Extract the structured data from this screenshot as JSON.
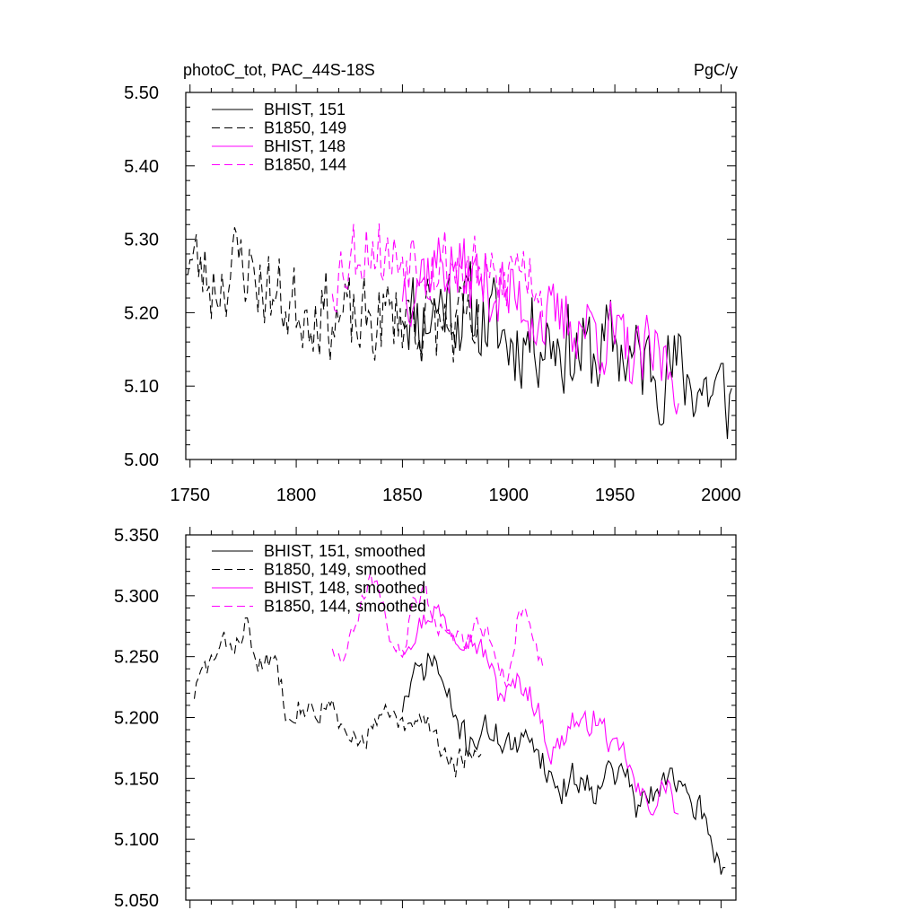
{
  "title_left": "photoC_tot, PAC_44S-18S",
  "title_right": "PgC/y",
  "chart_data": [
    {
      "type": "line",
      "panel": "top",
      "xlim": [
        1748,
        2007
      ],
      "ylim": [
        5.0,
        5.5
      ],
      "xticks": [
        1750,
        1800,
        1850,
        1900,
        1950,
        2000
      ],
      "xtick_labels": [
        "1750",
        "1800",
        "1850",
        "1900",
        "1950",
        "2000"
      ],
      "yticks": [
        5.0,
        5.1,
        5.2,
        5.3,
        5.4,
        5.5
      ],
      "ytick_labels": [
        "5.00",
        "5.10",
        "5.20",
        "5.30",
        "5.40",
        "5.50"
      ],
      "legend_position": "top-left",
      "series": [
        {
          "name": "BHIST, 151",
          "color": "#000000",
          "dash": "solid",
          "x_start": 1850,
          "x_end": 2005,
          "knots": [
            [
              1850,
              5.22
            ],
            [
              1860,
              5.19
            ],
            [
              1870,
              5.22
            ],
            [
              1880,
              5.2
            ],
            [
              1890,
              5.19
            ],
            [
              1900,
              5.16
            ],
            [
              1910,
              5.17
            ],
            [
              1920,
              5.17
            ],
            [
              1930,
              5.15
            ],
            [
              1940,
              5.14
            ],
            [
              1950,
              5.16
            ],
            [
              1960,
              5.13
            ],
            [
              1970,
              5.13
            ],
            [
              1980,
              5.12
            ],
            [
              1990,
              5.1
            ],
            [
              2005,
              5.08
            ]
          ],
          "amp": 0.06,
          "seed": 11
        },
        {
          "name": "B1850, 149",
          "color": "#000000",
          "dash": "dashed",
          "x_start": 1748,
          "x_end": 1887,
          "knots": [
            [
              1748,
              5.28
            ],
            [
              1760,
              5.24
            ],
            [
              1775,
              5.27
            ],
            [
              1790,
              5.22
            ],
            [
              1800,
              5.21
            ],
            [
              1810,
              5.21
            ],
            [
              1820,
              5.19
            ],
            [
              1830,
              5.18
            ],
            [
              1840,
              5.19
            ],
            [
              1850,
              5.2
            ],
            [
              1860,
              5.19
            ],
            [
              1870,
              5.18
            ],
            [
              1880,
              5.17
            ],
            [
              1887,
              5.17
            ]
          ],
          "amp": 0.055,
          "seed": 23
        },
        {
          "name": "BHIST, 148",
          "color": "#ff00ff",
          "dash": "solid",
          "x_start": 1850,
          "x_end": 1980,
          "knots": [
            [
              1850,
              5.24
            ],
            [
              1860,
              5.26
            ],
            [
              1870,
              5.27
            ],
            [
              1880,
              5.25
            ],
            [
              1890,
              5.24
            ],
            [
              1900,
              5.22
            ],
            [
              1910,
              5.21
            ],
            [
              1920,
              5.18
            ],
            [
              1930,
              5.19
            ],
            [
              1940,
              5.18
            ],
            [
              1950,
              5.16
            ],
            [
              1960,
              5.13
            ],
            [
              1970,
              5.14
            ],
            [
              1980,
              5.12
            ]
          ],
          "amp": 0.05,
          "seed": 37
        },
        {
          "name": "B1850, 144",
          "color": "#ff00ff",
          "dash": "dashed",
          "x_start": 1817,
          "x_end": 1916,
          "knots": [
            [
              1817,
              5.25
            ],
            [
              1825,
              5.28
            ],
            [
              1835,
              5.3
            ],
            [
              1845,
              5.27
            ],
            [
              1855,
              5.29
            ],
            [
              1865,
              5.27
            ],
            [
              1875,
              5.27
            ],
            [
              1885,
              5.25
            ],
            [
              1895,
              5.23
            ],
            [
              1905,
              5.27
            ],
            [
              1916,
              5.24
            ]
          ],
          "amp": 0.05,
          "seed": 53
        }
      ]
    },
    {
      "type": "line",
      "panel": "bottom",
      "xlim": [
        1748,
        2007
      ],
      "ylim": [
        5.05,
        5.35
      ],
      "xticks": [
        1750,
        1800,
        1850,
        1900,
        1950,
        2000
      ],
      "yticks": [
        5.05,
        5.1,
        5.15,
        5.2,
        5.25,
        5.3,
        5.35
      ],
      "ytick_labels": [
        "5.050",
        "5.100",
        "5.150",
        "5.200",
        "5.250",
        "5.300",
        "5.350"
      ],
      "legend_position": "top-left",
      "series": [
        {
          "name": "BHIST, 151, smoothed",
          "color": "#000000",
          "dash": "solid",
          "x_start": 1850,
          "x_end": 2002,
          "knots": [
            [
              1850,
              5.21
            ],
            [
              1855,
              5.23
            ],
            [
              1860,
              5.24
            ],
            [
              1865,
              5.25
            ],
            [
              1870,
              5.22
            ],
            [
              1875,
              5.2
            ],
            [
              1880,
              5.18
            ],
            [
              1890,
              5.19
            ],
            [
              1900,
              5.18
            ],
            [
              1905,
              5.17
            ],
            [
              1910,
              5.19
            ],
            [
              1915,
              5.17
            ],
            [
              1920,
              5.15
            ],
            [
              1925,
              5.14
            ],
            [
              1930,
              5.15
            ],
            [
              1935,
              5.15
            ],
            [
              1940,
              5.14
            ],
            [
              1945,
              5.16
            ],
            [
              1950,
              5.15
            ],
            [
              1955,
              5.16
            ],
            [
              1960,
              5.12
            ],
            [
              1965,
              5.14
            ],
            [
              1970,
              5.13
            ],
            [
              1975,
              5.16
            ],
            [
              1980,
              5.15
            ],
            [
              1985,
              5.12
            ],
            [
              1990,
              5.13
            ],
            [
              1995,
              5.1
            ],
            [
              2000,
              5.08
            ],
            [
              2002,
              5.08
            ]
          ],
          "amp": 0.012,
          "seed": 71
        },
        {
          "name": "B1850, 149, smoothed",
          "color": "#000000",
          "dash": "dashed",
          "x_start": 1752,
          "x_end": 1887,
          "knots": [
            [
              1752,
              5.22
            ],
            [
              1757,
              5.24
            ],
            [
              1762,
              5.25
            ],
            [
              1767,
              5.26
            ],
            [
              1772,
              5.26
            ],
            [
              1776,
              5.28
            ],
            [
              1780,
              5.25
            ],
            [
              1785,
              5.24
            ],
            [
              1790,
              5.25
            ],
            [
              1795,
              5.21
            ],
            [
              1800,
              5.21
            ],
            [
              1805,
              5.21
            ],
            [
              1810,
              5.2
            ],
            [
              1815,
              5.22
            ],
            [
              1820,
              5.19
            ],
            [
              1825,
              5.18
            ],
            [
              1830,
              5.18
            ],
            [
              1835,
              5.19
            ],
            [
              1840,
              5.2
            ],
            [
              1845,
              5.2
            ],
            [
              1850,
              5.19
            ],
            [
              1855,
              5.19
            ],
            [
              1860,
              5.2
            ],
            [
              1865,
              5.19
            ],
            [
              1870,
              5.17
            ],
            [
              1875,
              5.16
            ],
            [
              1880,
              5.17
            ],
            [
              1887,
              5.16
            ]
          ],
          "amp": 0.01,
          "seed": 83
        },
        {
          "name": "BHIST, 148, smoothed",
          "color": "#ff00ff",
          "dash": "solid",
          "x_start": 1850,
          "x_end": 1980,
          "knots": [
            [
              1850,
              5.26
            ],
            [
              1855,
              5.27
            ],
            [
              1860,
              5.28
            ],
            [
              1865,
              5.29
            ],
            [
              1870,
              5.28
            ],
            [
              1875,
              5.27
            ],
            [
              1880,
              5.27
            ],
            [
              1885,
              5.26
            ],
            [
              1890,
              5.25
            ],
            [
              1895,
              5.22
            ],
            [
              1900,
              5.22
            ],
            [
              1905,
              5.23
            ],
            [
              1910,
              5.22
            ],
            [
              1915,
              5.2
            ],
            [
              1920,
              5.17
            ],
            [
              1925,
              5.18
            ],
            [
              1930,
              5.2
            ],
            [
              1935,
              5.19
            ],
            [
              1940,
              5.2
            ],
            [
              1945,
              5.19
            ],
            [
              1950,
              5.17
            ],
            [
              1955,
              5.17
            ],
            [
              1960,
              5.14
            ],
            [
              1965,
              5.13
            ],
            [
              1970,
              5.13
            ],
            [
              1975,
              5.15
            ],
            [
              1980,
              5.11
            ]
          ],
          "amp": 0.01,
          "seed": 97
        },
        {
          "name": "B1850, 144, smoothed",
          "color": "#ff00ff",
          "dash": "dashed",
          "x_start": 1817,
          "x_end": 1916,
          "knots": [
            [
              1817,
              5.26
            ],
            [
              1820,
              5.25
            ],
            [
              1825,
              5.26
            ],
            [
              1830,
              5.29
            ],
            [
              1835,
              5.31
            ],
            [
              1840,
              5.3
            ],
            [
              1845,
              5.26
            ],
            [
              1850,
              5.25
            ],
            [
              1855,
              5.29
            ],
            [
              1860,
              5.31
            ],
            [
              1865,
              5.28
            ],
            [
              1870,
              5.27
            ],
            [
              1875,
              5.27
            ],
            [
              1880,
              5.26
            ],
            [
              1885,
              5.28
            ],
            [
              1890,
              5.27
            ],
            [
              1895,
              5.24
            ],
            [
              1900,
              5.23
            ],
            [
              1905,
              5.29
            ],
            [
              1910,
              5.28
            ],
            [
              1916,
              5.24
            ]
          ],
          "amp": 0.008,
          "seed": 109
        }
      ]
    }
  ]
}
